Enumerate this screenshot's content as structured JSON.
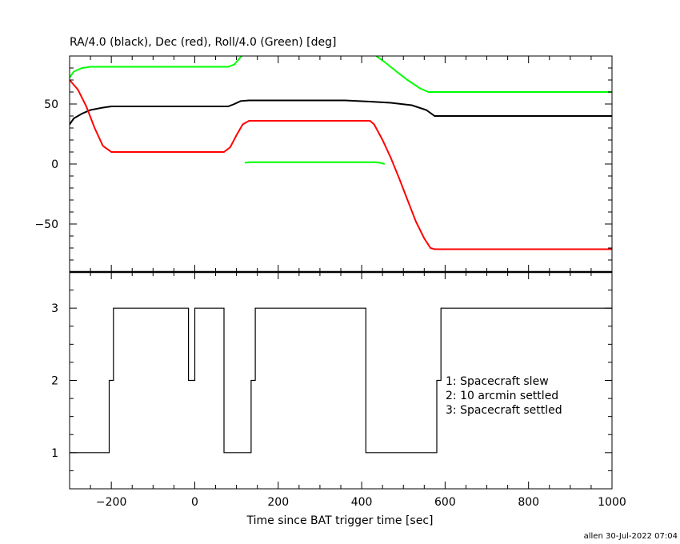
{
  "chart_data": [
    {
      "type": "line",
      "title": "RA/4.0 (black), Dec (red), Roll/4.0 (Green) [deg]",
      "xlim": [
        -300,
        1000
      ],
      "ylim": [
        -90,
        90
      ],
      "yticks": [
        -50,
        0,
        50
      ],
      "ytick_labels": [
        "−50",
        "0",
        "50"
      ],
      "series": [
        {
          "color": "#000000",
          "points": [
            [
              -300,
              33
            ],
            [
              -290,
              38
            ],
            [
              -270,
              42
            ],
            [
              -250,
              45
            ],
            [
              -220,
              47
            ],
            [
              -200,
              48
            ],
            [
              80,
              48
            ],
            [
              95,
              50
            ],
            [
              110,
              52.5
            ],
            [
              130,
              53
            ],
            [
              360,
              53
            ],
            [
              420,
              52
            ],
            [
              470,
              51
            ],
            [
              520,
              49
            ],
            [
              555,
              45
            ],
            [
              575,
              40
            ],
            [
              1000,
              40
            ]
          ]
        },
        {
          "color": "#ff0000",
          "points": [
            [
              -300,
              70
            ],
            [
              -280,
              62
            ],
            [
              -260,
              48
            ],
            [
              -240,
              30
            ],
            [
              -220,
              15
            ],
            [
              -200,
              10
            ],
            [
              0,
              10
            ],
            [
              70,
              10
            ],
            [
              85,
              14
            ],
            [
              100,
              24
            ],
            [
              115,
              33
            ],
            [
              130,
              36
            ],
            [
              365,
              36
            ],
            [
              420,
              36
            ],
            [
              430,
              33
            ],
            [
              450,
              20
            ],
            [
              470,
              5
            ],
            [
              490,
              -12
            ],
            [
              510,
              -30
            ],
            [
              530,
              -48
            ],
            [
              550,
              -62
            ],
            [
              565,
              -70
            ],
            [
              575,
              -71
            ],
            [
              1000,
              -71
            ]
          ]
        },
        {
          "color": "#00ff00",
          "segments": [
            [
              [
                -300,
                72
              ],
              [
                -290,
                77
              ],
              [
                -270,
                80
              ],
              [
                -250,
                81
              ],
              [
                -200,
                81
              ],
              [
                80,
                81
              ],
              [
                95,
                83
              ],
              [
                105,
                87
              ],
              [
                112,
                90
              ]
            ],
            [
              [
                120,
                1
              ],
              [
                130,
                1.5
              ],
              [
                360,
                1.5
              ],
              [
                430,
                1.5
              ],
              [
                445,
                1
              ],
              [
                455,
                0
              ]
            ],
            [
              [
                435,
                90
              ],
              [
                455,
                85
              ],
              [
                480,
                78
              ],
              [
                510,
                70
              ],
              [
                540,
                63
              ],
              [
                560,
                60
              ],
              [
                575,
                60
              ],
              [
                1000,
                60
              ]
            ]
          ]
        }
      ]
    },
    {
      "type": "line",
      "xlabel": "Time since BAT trigger time [sec]",
      "xlim": [
        -300,
        1000
      ],
      "ylim": [
        0.5,
        3.5
      ],
      "xticks": [
        -200,
        0,
        200,
        400,
        600,
        800,
        1000
      ],
      "xtick_labels": [
        "−200",
        "0",
        "200",
        "400",
        "600",
        "800",
        "1000"
      ],
      "yticks": [
        1,
        2,
        3
      ],
      "ytick_labels": [
        "1",
        "2",
        "3"
      ],
      "annotations": [
        "1: Spacecraft slew",
        "2: 10 arcmin settled",
        "3: Spacecraft settled"
      ],
      "series": [
        {
          "color": "#000000",
          "step_points": [
            [
              -300,
              1
            ],
            [
              -205,
              1
            ],
            [
              -205,
              2
            ],
            [
              -195,
              2
            ],
            [
              -195,
              3
            ],
            [
              -15,
              3
            ],
            [
              -15,
              2
            ],
            [
              0,
              2
            ],
            [
              0,
              3
            ],
            [
              70,
              3
            ],
            [
              70,
              1
            ],
            [
              135,
              1
            ],
            [
              135,
              2
            ],
            [
              145,
              2
            ],
            [
              145,
              3
            ],
            [
              410,
              3
            ],
            [
              410,
              1
            ],
            [
              580,
              1
            ],
            [
              580,
              2
            ],
            [
              590,
              2
            ],
            [
              590,
              3
            ],
            [
              1000,
              3
            ]
          ]
        }
      ]
    }
  ],
  "footer": "allen 30-Jul-2022 07:04"
}
